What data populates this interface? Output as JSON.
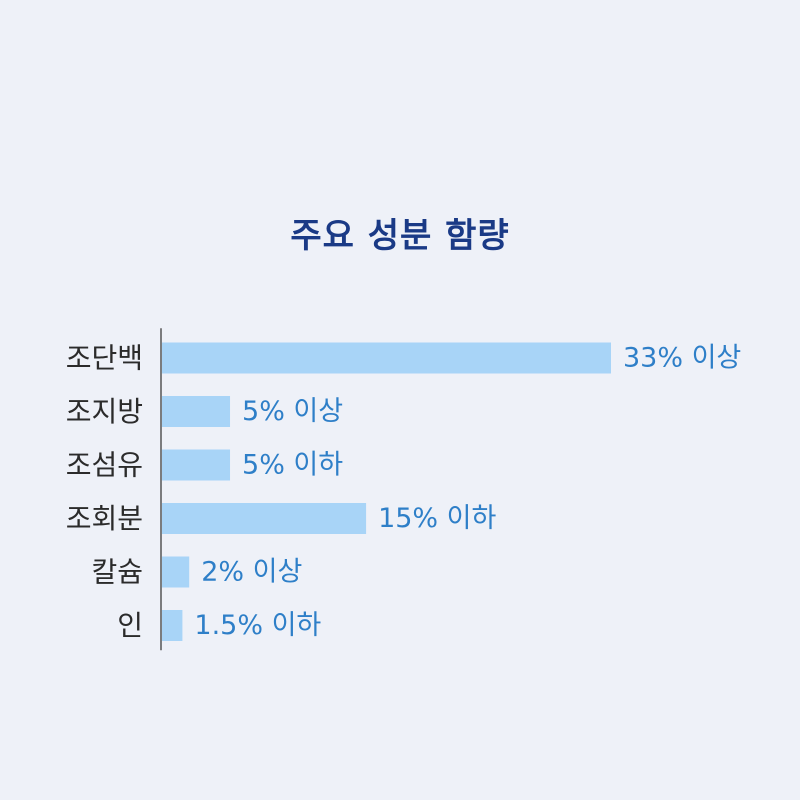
{
  "chart_data": {
    "type": "bar",
    "orientation": "horizontal",
    "title": "주요 성분 함량",
    "categories": [
      "조단백",
      "조지방",
      "조섬유",
      "조회분",
      "칼슘",
      "인"
    ],
    "values": [
      33,
      5,
      5,
      15,
      2,
      1.5
    ],
    "value_labels": [
      "33% 이상",
      "5% 이상",
      "5% 이하",
      "15% 이하",
      "2% 이상",
      "1.5% 이하"
    ],
    "unit": "%",
    "xlim": [
      0,
      33
    ],
    "grid": false,
    "legend": "none",
    "colors": {
      "bar": "#a8d4f7",
      "value_text": "#2e7fc8",
      "title_text": "#1a3a86",
      "axis": "#555555"
    }
  }
}
